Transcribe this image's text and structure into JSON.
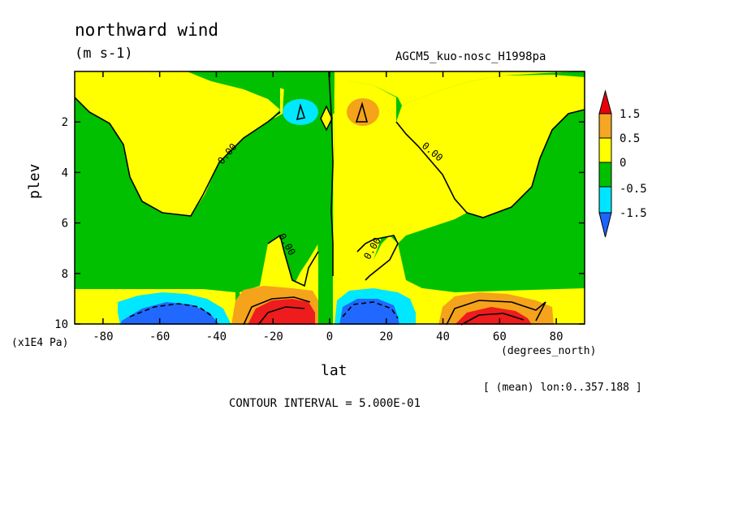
{
  "chart_data": {
    "type": "contour",
    "title": "northward wind",
    "units": "(m s-1)",
    "source_label": "AGCM5_kuo-nosc_H1998pa",
    "xlabel": "lat",
    "x_unit": "(degrees_north)",
    "ylabel": "plev",
    "y_unit": "(x1E4 Pa)",
    "mean_note": "[ (mean) lon:0..357.188 ]",
    "contour_interval": "CONTOUR INTERVAL = 5.000E-01",
    "xlim": [
      -90,
      90
    ],
    "ylim": [
      10,
      0
    ],
    "x_ticks": [
      -80,
      -60,
      -40,
      -20,
      0,
      20,
      40,
      60,
      80
    ],
    "x_tick_labels": [
      "-80",
      "-60",
      "-40",
      "-20",
      "0",
      "20",
      "40",
      "60",
      "80"
    ],
    "y_ticks": [
      2,
      4,
      6,
      8,
      10
    ],
    "y_tick_labels": [
      "2",
      "4",
      "6",
      "8",
      "10"
    ],
    "contour_labels": [
      "0.00",
      "0.00",
      "0.00",
      "0.00"
    ],
    "colorbar": {
      "labels": [
        "1.5",
        "0.5",
        "0",
        "-0.5",
        "-1.5"
      ],
      "levels": [
        1.5,
        0.5,
        0,
        -0.5,
        -1.5
      ],
      "colors": [
        "#e8000b",
        "#f5a623",
        "#ffff00",
        "#00c000",
        "#00e5ff",
        "#1e64ff"
      ]
    },
    "colors": {
      "red": "#ee1c1c",
      "orange": "#f4a31b",
      "yellow": "#ffff00",
      "green": "#00c000",
      "cyan": "#00e8ff",
      "blue": "#2068ff"
    }
  }
}
